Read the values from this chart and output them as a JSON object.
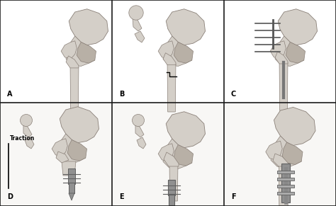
{
  "figure_width": 4.74,
  "figure_height": 2.91,
  "dpi": 100,
  "background_color": "#ffffff",
  "grid_color": "#1a1a1a",
  "grid_linewidth": 1.2,
  "panels": [
    "A",
    "B",
    "C",
    "D",
    "E",
    "F"
  ],
  "panel_label_fontsize": 7,
  "traction_fontsize": 5.5,
  "traction_label": "Traction",
  "bone_fill": "#d4cfc8",
  "bone_dark": "#8a8078",
  "bone_mid": "#b8b0a6",
  "bone_light": "#e8e4de",
  "implant_color": "#909090",
  "hardware_color": "#606060",
  "panel_bg": "#f5f3f0"
}
